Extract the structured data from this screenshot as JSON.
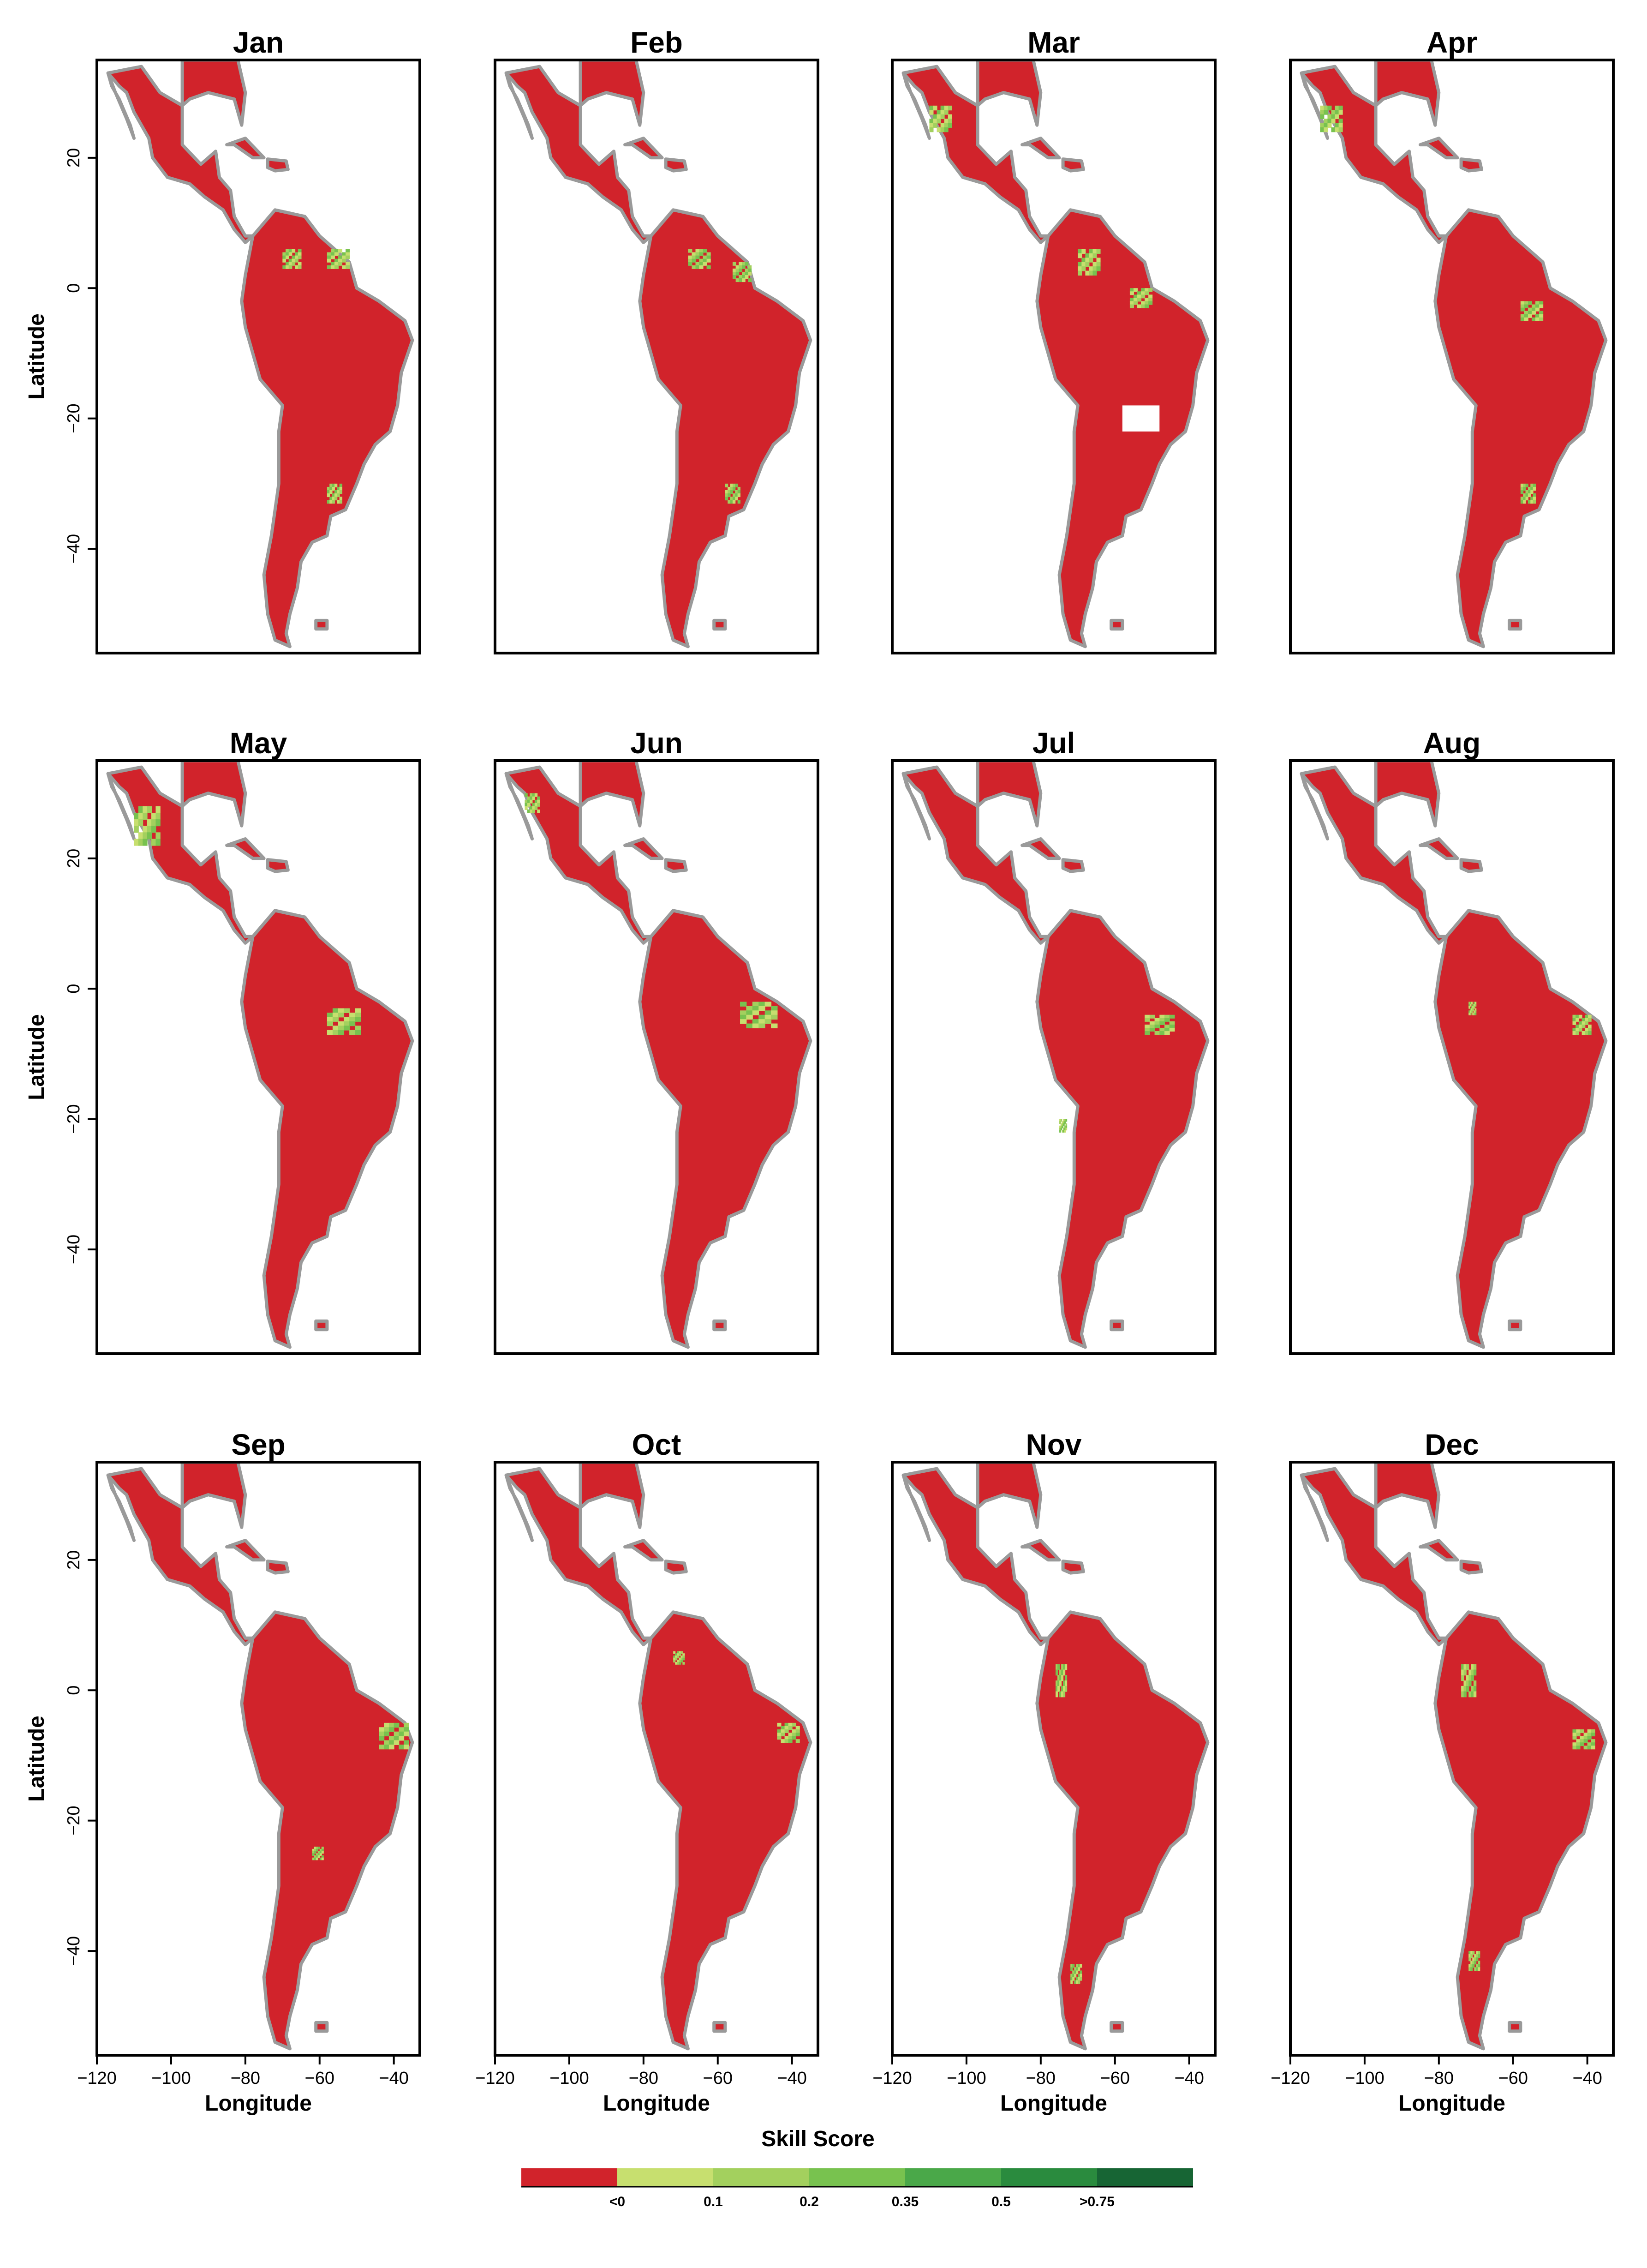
{
  "colors": {
    "land_neg": "#d1232b",
    "coast": "#9a9a9a",
    "frame": "#000000",
    "bins": [
      "#d1232b",
      "#c7df6f",
      "#a3d05e",
      "#78c24f",
      "#4aa849",
      "#2a8b3e",
      "#176534"
    ]
  },
  "chart_data": {
    "type": "heatmap",
    "panels": [
      {
        "title": "Jan",
        "positive_regions": [
          [
            -70,
            6,
            5,
            3
          ],
          [
            -58,
            6,
            6,
            3
          ],
          [
            -58,
            -30,
            4,
            3
          ]
        ]
      },
      {
        "title": "Feb",
        "positive_regions": [
          [
            -68,
            6,
            6,
            3
          ],
          [
            -56,
            4,
            5,
            3
          ],
          [
            -58,
            -30,
            4,
            3
          ]
        ]
      },
      {
        "title": "Mar",
        "positive_regions": [
          [
            -110,
            28,
            6,
            4
          ],
          [
            -70,
            6,
            6,
            4
          ],
          [
            -56,
            0,
            6,
            3
          ]
        ],
        "no_data_regions": [
          [
            -58,
            -18,
            10,
            4
          ]
        ]
      },
      {
        "title": "Apr",
        "positive_regions": [
          [
            -112,
            28,
            6,
            4
          ],
          [
            -58,
            -2,
            6,
            3
          ],
          [
            -58,
            -30,
            4,
            3
          ]
        ]
      },
      {
        "title": "May",
        "positive_regions": [
          [
            -110,
            28,
            7,
            6
          ],
          [
            -58,
            -3,
            9,
            4
          ]
        ]
      },
      {
        "title": "Jun",
        "positive_regions": [
          [
            -112,
            30,
            4,
            3
          ],
          [
            -54,
            -2,
            10,
            4
          ]
        ]
      },
      {
        "title": "Jul",
        "positive_regions": [
          [
            -52,
            -4,
            8,
            3
          ],
          [
            -75,
            -20,
            2,
            2
          ]
        ]
      },
      {
        "title": "Aug",
        "positive_regions": [
          [
            -44,
            -4,
            5,
            3
          ],
          [
            -72,
            -2,
            2,
            2
          ]
        ]
      },
      {
        "title": "Sep",
        "positive_regions": [
          [
            -44,
            -5,
            8,
            4
          ],
          [
            -62,
            -24,
            3,
            2
          ]
        ]
      },
      {
        "title": "Oct",
        "positive_regions": [
          [
            -44,
            -5,
            6,
            3
          ],
          [
            -72,
            6,
            3,
            2
          ]
        ]
      },
      {
        "title": "Nov",
        "positive_regions": [
          [
            -76,
            4,
            3,
            5
          ],
          [
            -72,
            -42,
            3,
            3
          ]
        ]
      },
      {
        "title": "Dec",
        "positive_regions": [
          [
            -74,
            4,
            4,
            5
          ],
          [
            -44,
            -6,
            6,
            3
          ],
          [
            -72,
            -40,
            3,
            3
          ]
        ]
      }
    ],
    "x_ticks": [
      -120,
      -100,
      -80,
      -60,
      -40
    ],
    "y_ticks": [
      20,
      0,
      -20,
      -40
    ],
    "xlim": [
      -120,
      -33
    ],
    "ylim": [
      -56,
      35
    ],
    "xlabel": "Longitude",
    "ylabel": "Latitude",
    "legend_title": "Skill Score",
    "legend_bins": [
      "<0",
      "0.1",
      "0.2",
      "0.35",
      "0.5",
      ">0.75"
    ],
    "x_tick_labels": [
      "−120",
      "−100",
      "−80",
      "−60",
      "−40"
    ],
    "y_tick_labels": [
      "20",
      "0",
      "−20",
      "−40"
    ]
  }
}
